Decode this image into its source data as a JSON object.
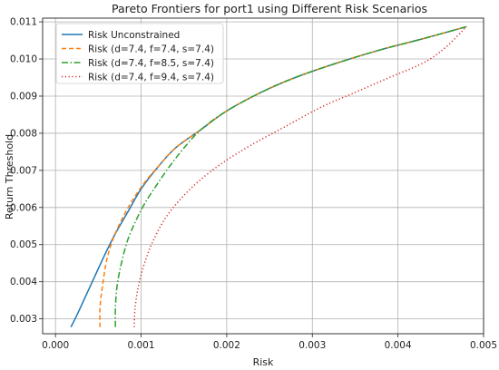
{
  "chart_data": {
    "type": "line",
    "title": "Pareto Frontiers for port1 using Different Risk Scenarios",
    "xlabel": "Risk",
    "ylabel": "Return Threshold",
    "xlim": [
      -0.00015,
      0.005
    ],
    "ylim": [
      0.0026,
      0.0111
    ],
    "xticks": [
      "0.000",
      "0.001",
      "0.002",
      "0.003",
      "0.004",
      "0.005"
    ],
    "xtick_values": [
      0,
      0.001,
      0.002,
      0.003,
      0.004,
      0.005
    ],
    "yticks": [
      "0.003",
      "0.004",
      "0.005",
      "0.006",
      "0.007",
      "0.008",
      "0.009",
      "0.010",
      "0.011"
    ],
    "ytick_values": [
      0.003,
      0.004,
      0.005,
      0.006,
      0.007,
      0.008,
      0.009,
      0.01,
      0.011
    ],
    "grid": true,
    "legend_position": "top-left",
    "series": [
      {
        "name": "Risk Unconstrained",
        "color": "#1f77b4",
        "dash": "solid",
        "points": [
          [
            0.00018,
            0.00278
          ],
          [
            0.00025,
            0.0031
          ],
          [
            0.00035,
            0.0036
          ],
          [
            0.00045,
            0.0041
          ],
          [
            0.00057,
            0.0047
          ],
          [
            0.0007,
            0.0053
          ],
          [
            0.00085,
            0.0059
          ],
          [
            0.001,
            0.0065
          ],
          [
            0.0012,
            0.0071
          ],
          [
            0.0014,
            0.0076
          ],
          [
            0.0017,
            0.0081
          ],
          [
            0.002,
            0.0086
          ],
          [
            0.0024,
            0.0091
          ],
          [
            0.0028,
            0.0095
          ],
          [
            0.0033,
            0.0099
          ],
          [
            0.0038,
            0.01025
          ],
          [
            0.0043,
            0.01055
          ],
          [
            0.0048,
            0.01087
          ]
        ]
      },
      {
        "name": "Risk (d=7.4, f=7.4, s=7.4)",
        "color": "#ff7f0e",
        "dash": "dashed",
        "points": [
          [
            0.00052,
            0.00278
          ],
          [
            0.00052,
            0.0033
          ],
          [
            0.00055,
            0.0039
          ],
          [
            0.0006,
            0.0046
          ],
          [
            0.00068,
            0.0052
          ],
          [
            0.00078,
            0.0057
          ],
          [
            0.0009,
            0.0062
          ],
          [
            0.00105,
            0.0067
          ],
          [
            0.0012,
            0.0071
          ],
          [
            0.0014,
            0.0076
          ],
          [
            0.0017,
            0.0081
          ],
          [
            0.002,
            0.0086
          ],
          [
            0.0024,
            0.0091
          ],
          [
            0.0028,
            0.0095
          ],
          [
            0.0033,
            0.0099
          ],
          [
            0.0038,
            0.01025
          ],
          [
            0.0043,
            0.01055
          ],
          [
            0.0048,
            0.01087
          ]
        ]
      },
      {
        "name": "Risk (d=7.4, f=8.5, s=7.4)",
        "color": "#2ca02c",
        "dash": "dashdot",
        "points": [
          [
            0.0007,
            0.00278
          ],
          [
            0.0007,
            0.0033
          ],
          [
            0.00072,
            0.0039
          ],
          [
            0.00077,
            0.0045
          ],
          [
            0.00084,
            0.0051
          ],
          [
            0.00093,
            0.0056
          ],
          [
            0.00104,
            0.0061
          ],
          [
            0.00118,
            0.0066
          ],
          [
            0.00133,
            0.0071
          ],
          [
            0.0015,
            0.0076
          ],
          [
            0.0017,
            0.0081
          ],
          [
            0.002,
            0.0086
          ],
          [
            0.0024,
            0.0091
          ],
          [
            0.0028,
            0.0095
          ],
          [
            0.0033,
            0.0099
          ],
          [
            0.0038,
            0.01025
          ],
          [
            0.0043,
            0.01055
          ],
          [
            0.0048,
            0.01087
          ]
        ]
      },
      {
        "name": "Risk (d=7.4, f=9.4, s=7.4)",
        "color": "#d62728",
        "dash": "dotted",
        "points": [
          [
            0.00092,
            0.00278
          ],
          [
            0.00093,
            0.0033
          ],
          [
            0.00097,
            0.0039
          ],
          [
            0.00104,
            0.0045
          ],
          [
            0.00114,
            0.0051
          ],
          [
            0.00128,
            0.0057
          ],
          [
            0.00145,
            0.0062
          ],
          [
            0.00167,
            0.0067
          ],
          [
            0.00195,
            0.0072
          ],
          [
            0.0023,
            0.0077
          ],
          [
            0.0027,
            0.0082
          ],
          [
            0.0031,
            0.0087
          ],
          [
            0.0035,
            0.0091
          ],
          [
            0.0039,
            0.0095
          ],
          [
            0.0043,
            0.0099
          ],
          [
            0.00455,
            0.0103
          ],
          [
            0.0048,
            0.01087
          ]
        ]
      }
    ]
  }
}
